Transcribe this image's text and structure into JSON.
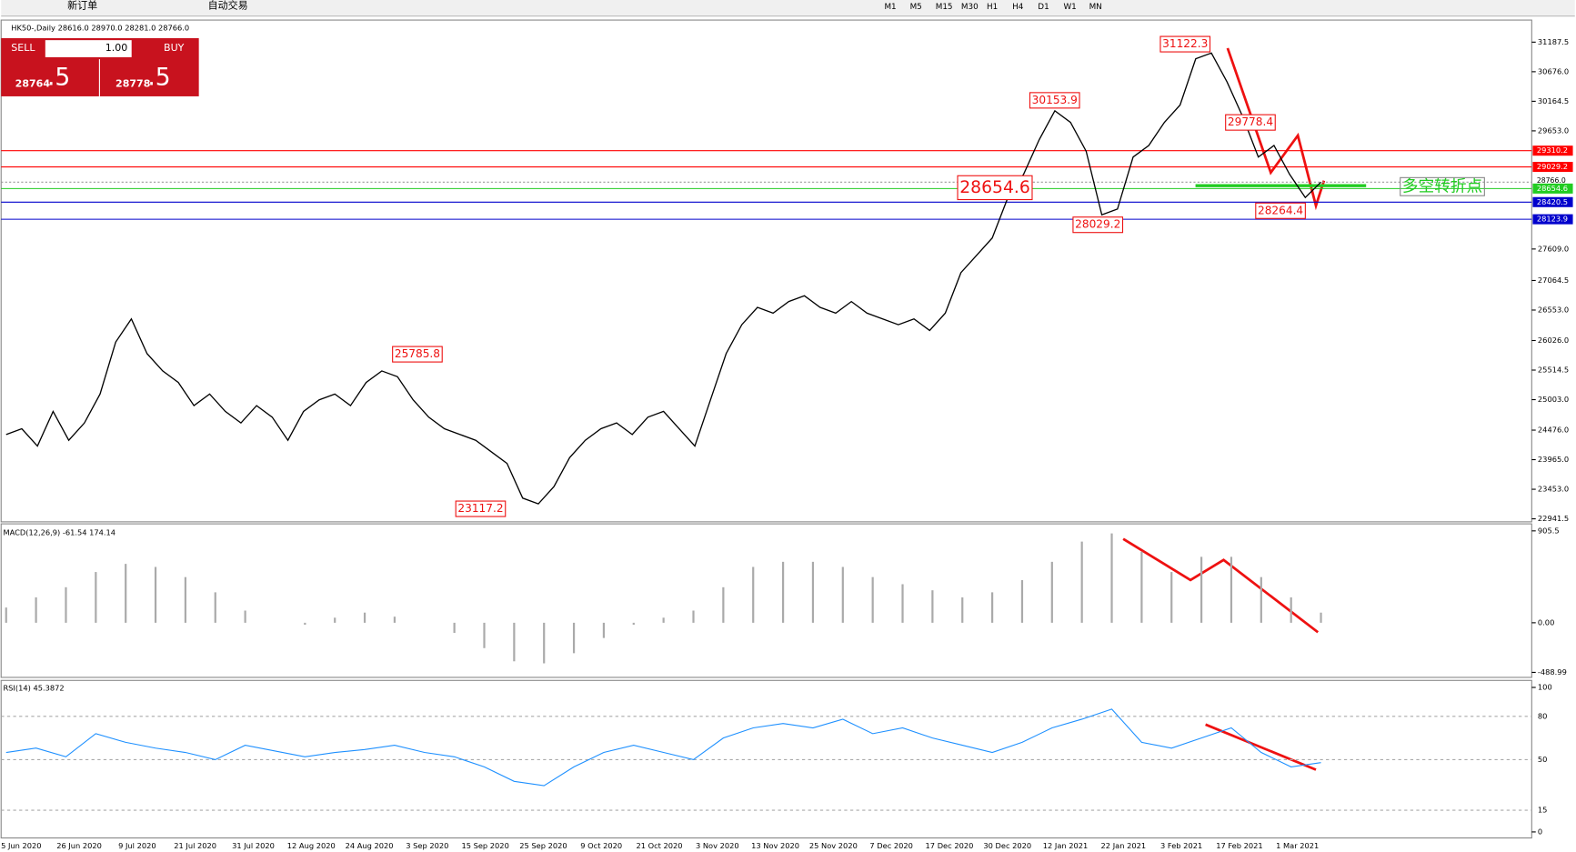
{
  "toolbar": {
    "buttons": [
      "新订单",
      "自动交易"
    ],
    "timeframes": [
      "M1",
      "M5",
      "M15",
      "M30",
      "H1",
      "H4",
      "D1",
      "W1",
      "MN"
    ]
  },
  "chart_header": "HK50-,Daily  28616.0 28970.0 28281.0 28766.0",
  "trade_panel": {
    "sell": "SELL",
    "volume": "1.00",
    "buy": "BUY",
    "sell_price_main": "28764",
    "sell_price_frac": ".5",
    "buy_price_main": "28778",
    "buy_price_frac": ".5"
  },
  "price_axis": {
    "ticks": [
      {
        "value": 31187.5,
        "label": "31187.5"
      },
      {
        "value": 30676.0,
        "label": "30676.0"
      },
      {
        "value": 30164.5,
        "label": "30164.5"
      },
      {
        "value": 29653.0,
        "label": "29653.0"
      },
      {
        "value": 27609.0,
        "label": "27609.0"
      },
      {
        "value": 27064.5,
        "label": "27064.5"
      },
      {
        "value": 26553.0,
        "label": "26553.0"
      },
      {
        "value": 26026.0,
        "label": "26026.0"
      },
      {
        "value": 25514.5,
        "label": "25514.5"
      },
      {
        "value": 25003.0,
        "label": "25003.0"
      },
      {
        "value": 24476.0,
        "label": "24476.0"
      },
      {
        "value": 23965.0,
        "label": "23965.0"
      },
      {
        "value": 23453.0,
        "label": "23453.0"
      },
      {
        "value": 22941.5,
        "label": "22941.5"
      }
    ]
  },
  "price_series": [
    24400,
    24500,
    24200,
    24800,
    24300,
    24600,
    25100,
    26000,
    26400,
    25800,
    25500,
    25300,
    24900,
    25100,
    24800,
    24600,
    24900,
    24700,
    24300,
    24800,
    25000,
    25100,
    24900,
    25300,
    25500,
    25400,
    25000,
    24700,
    24500,
    24400,
    24300,
    24100,
    23900,
    23300,
    23200,
    23500,
    24000,
    24300,
    24500,
    24600,
    24400,
    24700,
    24800,
    24500,
    24200,
    25000,
    25800,
    26300,
    26600,
    26500,
    26700,
    26800,
    26600,
    26500,
    26700,
    26500,
    26400,
    26300,
    26400,
    26200,
    26500,
    27200,
    27500,
    27800,
    28500,
    28900,
    29500,
    30000,
    29800,
    29300,
    28200,
    28300,
    29200,
    29400,
    29800,
    30100,
    30900,
    31000,
    30500,
    29900,
    29200,
    29400,
    28900,
    28500,
    28766
  ],
  "levels": [
    {
      "value": 29310.2,
      "label": "29310.2",
      "color": "#ff0000"
    },
    {
      "value": 29029.2,
      "label": "29029.2",
      "color": "#ff0000"
    },
    {
      "value": 28654.6,
      "label": "28654.6",
      "color": "#22cc22"
    },
    {
      "value": 28420.5,
      "label": "28420.5",
      "color": "#0000cc"
    },
    {
      "value": 28123.9,
      "label": "28123.9",
      "color": "#0000cc"
    }
  ],
  "current_price": {
    "value": 28766.0,
    "label": "28766.0"
  },
  "annotations": [
    "31122.3",
    "30153.9",
    "29778.4",
    "28654.6",
    "28029.2",
    "28264.4",
    "25785.8",
    "23117.2"
  ],
  "signal_text": "多空转折点",
  "macd": {
    "label": "MACD(12,26,9) -61.54 174.14",
    "ticks": [
      {
        "value": 905.5,
        "label": "905.5"
      },
      {
        "value": 0,
        "label": "0.00"
      },
      {
        "value": -488.99,
        "label": "-488.99"
      }
    ],
    "histogram": [
      150,
      250,
      350,
      500,
      580,
      550,
      450,
      300,
      120,
      0,
      -20,
      50,
      100,
      60,
      0,
      -100,
      -250,
      -380,
      -400,
      -300,
      -150,
      -20,
      50,
      120,
      350,
      550,
      600,
      600,
      550,
      450,
      380,
      320,
      250,
      300,
      420,
      600,
      800,
      880,
      700,
      500,
      650,
      650,
      450,
      250,
      100
    ]
  },
  "rsi": {
    "label": "RSI(14) 45.3872",
    "ticks": [
      100,
      80,
      50,
      15,
      0
    ],
    "values": [
      55,
      58,
      52,
      68,
      62,
      58,
      55,
      50,
      60,
      56,
      52,
      55,
      57,
      60,
      55,
      52,
      45,
      35,
      32,
      45,
      55,
      60,
      55,
      50,
      65,
      72,
      75,
      72,
      78,
      68,
      72,
      65,
      60,
      55,
      62,
      72,
      78,
      85,
      62,
      58,
      65,
      72,
      55,
      45,
      48
    ]
  },
  "dates": [
    "5 Jun 2020",
    "26 Jun 2020",
    "9 Jul 2020",
    "21 Jul 2020",
    "31 Jul 2020",
    "12 Aug 2020",
    "24 Aug 2020",
    "3 Sep 2020",
    "15 Sep 2020",
    "25 Sep 2020",
    "9 Oct 2020",
    "21 Oct 2020",
    "3 Nov 2020",
    "13 Nov 2020",
    "25 Nov 2020",
    "7 Dec 2020",
    "17 Dec 2020",
    "30 Dec 2020",
    "12 Jan 2021",
    "22 Jan 2021",
    "3 Feb 2021",
    "17 Feb 2021",
    "1 Mar 2021"
  ]
}
